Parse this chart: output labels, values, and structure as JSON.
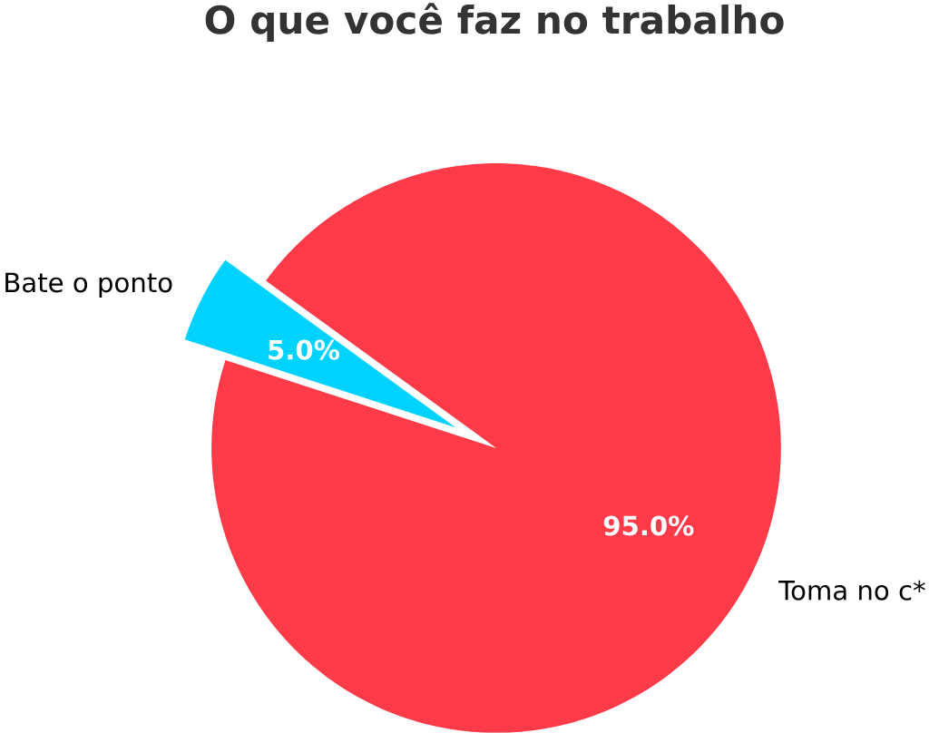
{
  "chart_data": {
    "type": "pie",
    "title": "O que você faz no trabalho",
    "categories": [
      "Bate o ponto",
      "Toma no c*"
    ],
    "values": [
      5,
      95
    ],
    "colors": [
      "#00d2ff",
      "#ff3b4a"
    ],
    "value_labels": [
      "5.0%",
      "95.0%"
    ]
  }
}
